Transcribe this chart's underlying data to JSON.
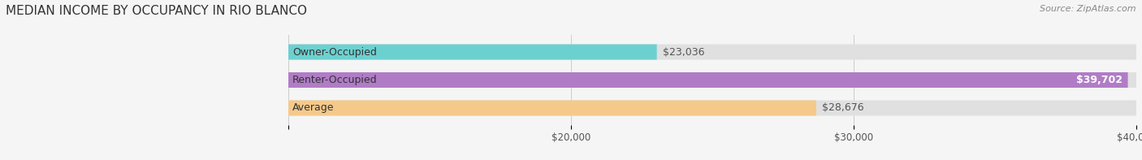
{
  "title": "MEDIAN INCOME BY OCCUPANCY IN RIO BLANCO",
  "source": "Source: ZipAtlas.com",
  "categories": [
    "Owner-Occupied",
    "Renter-Occupied",
    "Average"
  ],
  "values": [
    23036,
    39702,
    28676
  ],
  "bar_colors": [
    "#6dd0d0",
    "#b07cc6",
    "#f5c98a"
  ],
  "bar_bg_color": "#e0e0e0",
  "value_labels": [
    "$23,036",
    "$39,702",
    "$28,676"
  ],
  "xlim": [
    0,
    40000
  ],
  "xstart": 10000,
  "title_fontsize": 11,
  "source_fontsize": 8,
  "label_fontsize": 9,
  "tick_fontsize": 8.5,
  "bar_height": 0.55,
  "bg_color": "#f5f5f5"
}
